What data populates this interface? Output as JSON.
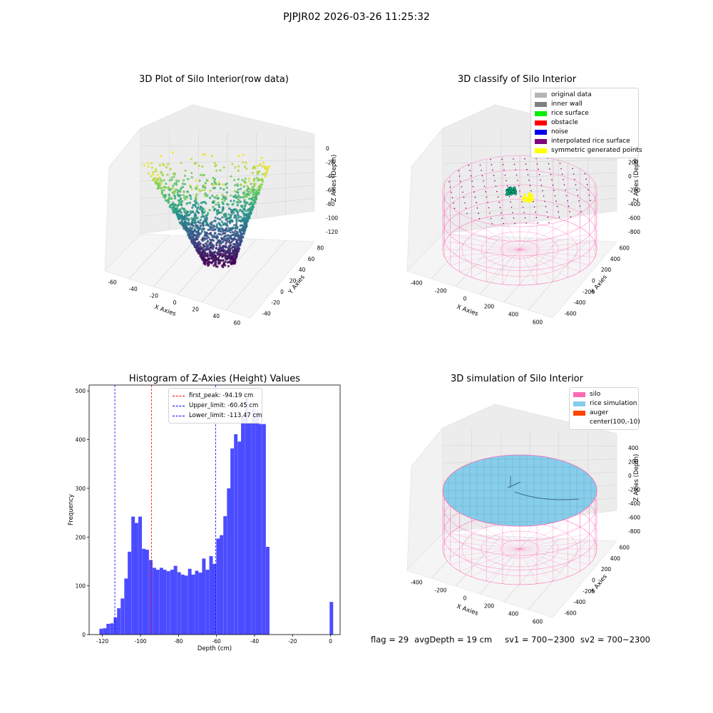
{
  "figure": {
    "suptitle": "PJPJR02 2026-03-26 11:25:32"
  },
  "chart_data": [
    {
      "type": "scatter",
      "title": "3D Plot of Silo Interior(row data)",
      "xlabel": "X Axies",
      "ylabel": "Y Axies",
      "zlabel": "Z Axies (Depth)",
      "xticks": [
        -60,
        -40,
        -20,
        0,
        20,
        40,
        60
      ],
      "yticks": [
        -40,
        -20,
        0,
        20,
        40,
        60,
        80
      ],
      "zticks": [
        0,
        -20,
        -40,
        -60,
        -80,
        -100,
        -120
      ],
      "xlim": [
        -65,
        75
      ],
      "ylim": [
        -50,
        95
      ],
      "zlim": [
        -130,
        5
      ],
      "colormap": "viridis"
    },
    {
      "type": "scatter",
      "title": "3D classify of Silo Interior",
      "xlabel": "X Axies",
      "ylabel": "Y Axies",
      "zlabel": "Z Axies (Depth)",
      "xticks": [
        -400,
        -200,
        0,
        200,
        400,
        600
      ],
      "yticks": [
        -600,
        -400,
        -200,
        0,
        200,
        400,
        600
      ],
      "zticks": [
        400,
        200,
        0,
        -200,
        -400,
        -600,
        -800
      ],
      "legend": [
        {
          "label": "original data",
          "color": "#b4b4b4"
        },
        {
          "label": "inner wall",
          "color": "#808080"
        },
        {
          "label": "rice surface",
          "color": "#00ee00"
        },
        {
          "label": "obstacle",
          "color": "#ff0000"
        },
        {
          "label": "noise",
          "color": "#0000ee"
        },
        {
          "label": "interpolated rice surface",
          "color": "#800080"
        },
        {
          "label": "symmetric generated points",
          "color": "#ffff00"
        }
      ]
    },
    {
      "type": "bar",
      "title": "Histogram of Z-Axies (Height) Values",
      "xlabel": "Depth (cm)",
      "ylabel": "Frequency",
      "xlim": [
        -127,
        5
      ],
      "ylim": [
        0,
        512
      ],
      "xticks": [
        -120,
        -100,
        -80,
        -60,
        -40,
        -20,
        0
      ],
      "yticks": [
        0,
        100,
        200,
        300,
        400,
        500
      ],
      "bin_width": 1.86,
      "bin_starts": [
        -121.6,
        -119.7,
        -117.9,
        -116.0,
        -114.1,
        -112.3,
        -110.4,
        -108.5,
        -106.7,
        -104.8,
        -103.0,
        -101.1,
        -99.2,
        -97.4,
        -95.5,
        -93.6,
        -91.8,
        -89.9,
        -88.1,
        -86.2,
        -84.3,
        -82.5,
        -80.6,
        -78.7,
        -76.9,
        -75.0,
        -73.2,
        -71.3,
        -69.4,
        -67.6,
        -65.7,
        -63.8,
        -62.0,
        -60.1,
        -58.3,
        -56.4,
        -54.5,
        -52.7,
        -50.8,
        -48.9,
        -47.1,
        -45.2,
        -43.4,
        -41.5,
        -39.6,
        -37.8,
        -35.9,
        -34.0,
        -32.2,
        -30.3,
        -28.5,
        -26.6,
        -24.7,
        -22.9,
        -21.0,
        -19.1,
        -17.3,
        -15.4,
        -13.6,
        -11.7,
        -9.8,
        -7.9,
        -6.1,
        -4.2,
        -2.3,
        -0.5
      ],
      "values": [
        12,
        13,
        22,
        23,
        35,
        54,
        74,
        115,
        170,
        242,
        229,
        242,
        176,
        174,
        153,
        137,
        133,
        137,
        133,
        130,
        133,
        141,
        128,
        123,
        121,
        135,
        123,
        131,
        127,
        156,
        133,
        161,
        145,
        197,
        204,
        243,
        300,
        382,
        411,
        396,
        446,
        486,
        434,
        463,
        458,
        432,
        432,
        180,
        0,
        0,
        0,
        0,
        0,
        0,
        0,
        0,
        0,
        0,
        0,
        0,
        0,
        0,
        0,
        0,
        0,
        67
      ],
      "color": "#0000ff",
      "reference_lines": [
        {
          "label": "first_peak: -94.19 cm",
          "x": -94.19,
          "color": "#ff0000"
        },
        {
          "label": "Upper_limit: -60.45 cm",
          "x": -60.45,
          "color": "#0000ff"
        },
        {
          "label": "Lower_limit: -113.47 cm",
          "x": -113.47,
          "color": "#0000ff"
        }
      ]
    },
    {
      "type": "scatter",
      "title": "3D simulation of Silo Interior",
      "xlabel": "X Axies",
      "ylabel": "Y Axies",
      "zlabel": "Z Axies (Depth)",
      "xticks": [
        -400,
        -200,
        0,
        200,
        400,
        600
      ],
      "yticks": [
        -600,
        -400,
        -200,
        0,
        200,
        400,
        600
      ],
      "zticks": [
        400,
        200,
        0,
        -200,
        -400,
        -600,
        -800
      ],
      "legend": [
        {
          "label": "silo",
          "color": "#ff69b4"
        },
        {
          "label": "rice simulation",
          "color": "#87ceeb"
        },
        {
          "label": "auger",
          "color": "#ff4500"
        },
        {
          "label": "center(100,-10)",
          "color": ""
        }
      ]
    }
  ],
  "status": {
    "flag": "flag = 29",
    "avg_depth": "avgDepth = 19 cm",
    "sv1": "sv1 = 700~2300",
    "sv2": "sv2 = 700~2300"
  }
}
